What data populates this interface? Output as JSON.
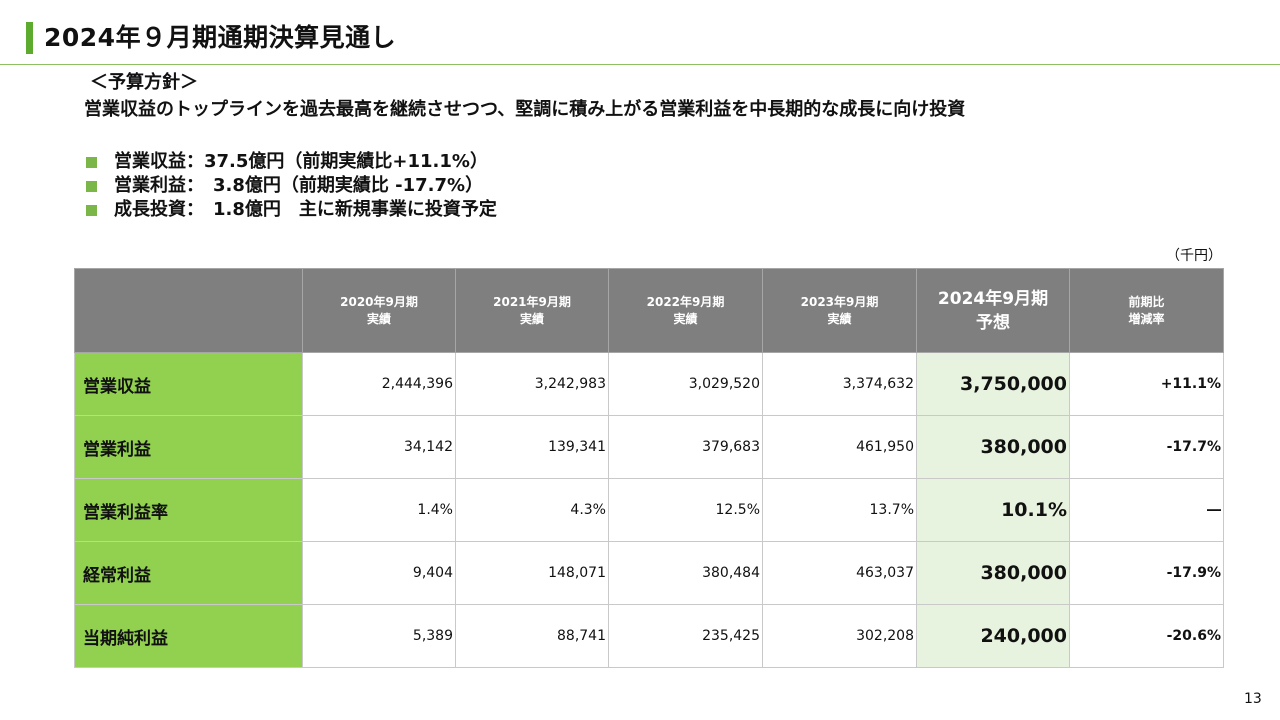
{
  "title": "2024年９月期通期決算見通し",
  "policy": {
    "heading": "＜予算方針＞",
    "text": "営業収益のトップラインを過去最高を継続させつつ、堅調に積み上がる営業利益を中長期的な成長に向け投資"
  },
  "bullets": [
    "営業収益：37.5億円（前期実績比+11.1%）",
    "営業利益：　3.8億円（前期実績比 -17.7%）",
    "成長投資：　1.8億円　主に新規事業に投資予定"
  ],
  "unit": "（千円）",
  "table": {
    "headers": [
      {
        "line1": "2020年9月期",
        "line2": "実績"
      },
      {
        "line1": "2021年9月期",
        "line2": "実績"
      },
      {
        "line1": "2022年9月期",
        "line2": "実績"
      },
      {
        "line1": "2023年9月期",
        "line2": "実績"
      },
      {
        "line1": "2024年9月期",
        "line2": "予想"
      },
      {
        "line1": "前期比",
        "line2": "増減率"
      }
    ],
    "rows": [
      {
        "label": "営業収益",
        "values": [
          "2,444,396",
          "3,242,983",
          "3,029,520",
          "3,374,632"
        ],
        "forecast": "3,750,000",
        "change": "+11.1%"
      },
      {
        "label": "営業利益",
        "values": [
          "34,142",
          "139,341",
          "379,683",
          "461,950"
        ],
        "forecast": "380,000",
        "change": "-17.7%"
      },
      {
        "label": "営業利益率",
        "values": [
          "1.4%",
          "4.3%",
          "12.5%",
          "13.7%"
        ],
        "forecast": "10.1%",
        "change": "―"
      },
      {
        "label": "経常利益",
        "values": [
          "9,404",
          "148,071",
          "380,484",
          "463,037"
        ],
        "forecast": "380,000",
        "change": "-17.9%"
      },
      {
        "label": "当期純利益",
        "values": [
          "5,389",
          "88,741",
          "235,425",
          "302,208"
        ],
        "forecast": "240,000",
        "change": "-20.6%"
      }
    ]
  },
  "page_number": "13",
  "colors": {
    "accent_green": "#92d050",
    "header_gray": "#7f7f7f",
    "forecast_bg": "#e8f3df"
  }
}
